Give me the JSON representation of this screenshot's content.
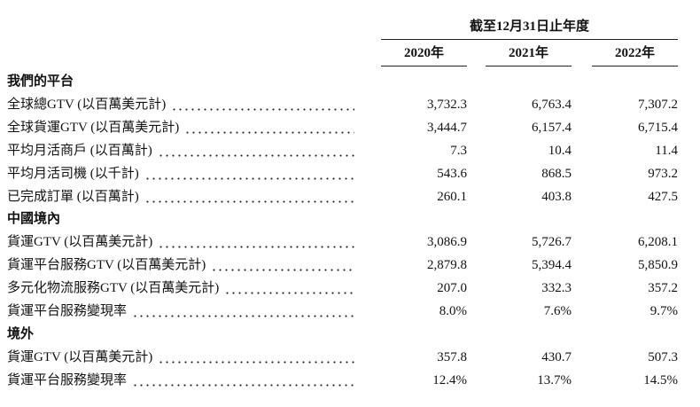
{
  "header": {
    "title": "截至12月31日止年度",
    "columns": [
      "2020年",
      "2021年",
      "2022年"
    ]
  },
  "sections": [
    {
      "title": "我們的平台",
      "rows": [
        {
          "label": "全球總GTV (以百萬美元計)",
          "values": [
            "3,732.3",
            "6,763.4",
            "7,307.2"
          ]
        },
        {
          "label": "全球貨運GTV (以百萬美元計)",
          "values": [
            "3,444.7",
            "6,157.4",
            "6,715.4"
          ]
        },
        {
          "label": "平均月活商戶 (以百萬計)",
          "values": [
            "7.3",
            "10.4",
            "11.4"
          ]
        },
        {
          "label": "平均月活司機 (以千計)",
          "values": [
            "543.6",
            "868.5",
            "973.2"
          ]
        },
        {
          "label": "已完成訂單 (以百萬計)",
          "values": [
            "260.1",
            "403.8",
            "427.5"
          ]
        }
      ]
    },
    {
      "title": "中國境內",
      "rows": [
        {
          "label": "貨運GTV (以百萬美元計)",
          "values": [
            "3,086.9",
            "5,726.7",
            "6,208.1"
          ]
        },
        {
          "label": "貨運平台服務GTV (以百萬美元計)",
          "values": [
            "2,879.8",
            "5,394.4",
            "5,850.9"
          ]
        },
        {
          "label": "多元化物流服務GTV (以百萬美元計)",
          "values": [
            "207.0",
            "332.3",
            "357.2"
          ]
        },
        {
          "label": "貨運平台服務變現率",
          "values": [
            "8.0%",
            "7.6%",
            "9.7%"
          ]
        }
      ]
    },
    {
      "title": "境外",
      "rows": [
        {
          "label": "貨運GTV (以百萬美元計)",
          "values": [
            "357.8",
            "430.7",
            "507.3"
          ]
        },
        {
          "label": "貨運平台服務變現率",
          "values": [
            "12.4%",
            "13.7%",
            "14.5%"
          ]
        }
      ]
    }
  ]
}
